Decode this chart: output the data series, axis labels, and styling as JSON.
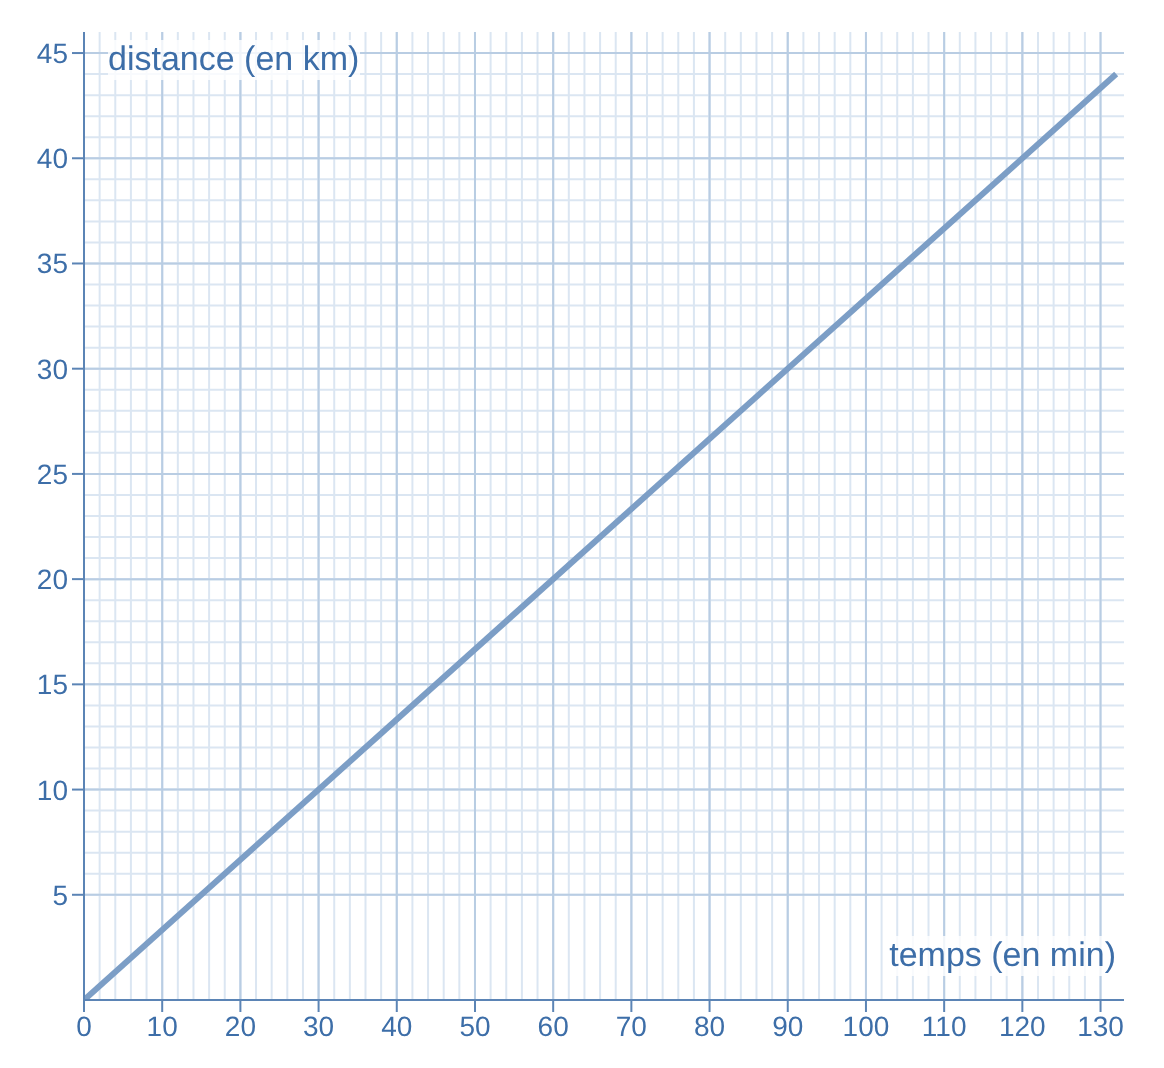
{
  "chart_data": {
    "type": "line",
    "xlabel": "temps (en min)",
    "ylabel": "distance (en km)",
    "x": [
      0,
      132
    ],
    "series": [
      {
        "color": "#7c9ec6",
        "values": [
          0,
          44
        ]
      }
    ],
    "xlim": [
      0,
      133
    ],
    "ylim": [
      0,
      46
    ],
    "xticks": [
      0,
      10,
      20,
      30,
      40,
      50,
      60,
      70,
      80,
      90,
      100,
      110,
      120,
      130
    ],
    "yticks": [
      5,
      10,
      15,
      20,
      25,
      30,
      35,
      40,
      45
    ],
    "grid": true,
    "marker": "none",
    "line_style": "solid"
  }
}
